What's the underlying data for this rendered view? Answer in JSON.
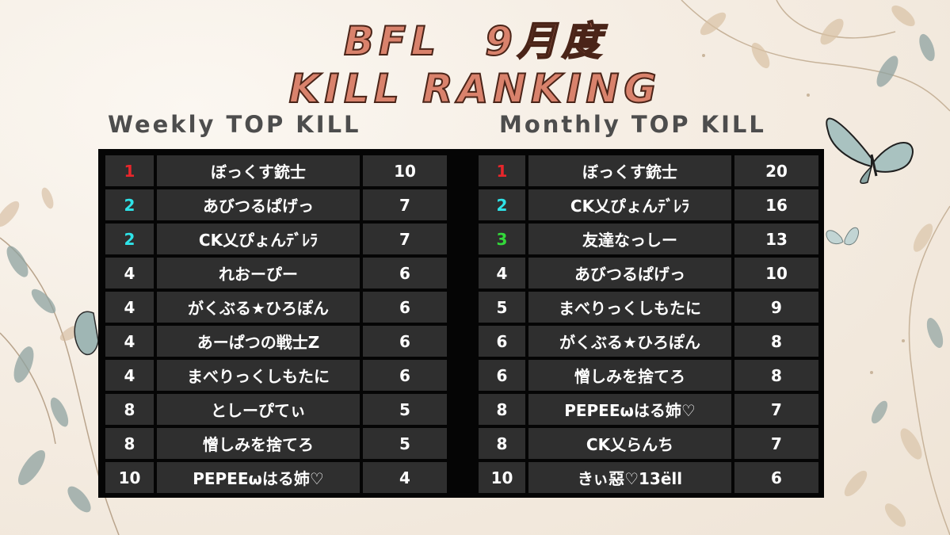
{
  "title": {
    "line1": "BFL　9月度",
    "line2": "KILL RANKING"
  },
  "weekly": {
    "heading": "Weekly TOP KILL",
    "rows": [
      {
        "rank": "1",
        "name": "ぼっくす銃士",
        "kills": "10",
        "rank_color": "#e8262b"
      },
      {
        "rank": "2",
        "name": "あびつるぱげっ",
        "kills": "7",
        "rank_color": "#2ee3e8"
      },
      {
        "rank": "2",
        "name": "CK乂ぴょんﾃﾞﾚﾗ",
        "kills": "7",
        "rank_color": "#2ee3e8"
      },
      {
        "rank": "4",
        "name": "れおーぴー",
        "kills": "6",
        "rank_color": "#ffffff"
      },
      {
        "rank": "4",
        "name": "がくぶる★ひろぽん",
        "kills": "6",
        "rank_color": "#ffffff"
      },
      {
        "rank": "4",
        "name": "あーぱつの戦士Z",
        "kills": "6",
        "rank_color": "#ffffff"
      },
      {
        "rank": "4",
        "name": "まべりっくしもたに",
        "kills": "6",
        "rank_color": "#ffffff"
      },
      {
        "rank": "8",
        "name": "としーぴてぃ",
        "kills": "5",
        "rank_color": "#ffffff"
      },
      {
        "rank": "8",
        "name": "憎しみを捨てろ",
        "kills": "5",
        "rank_color": "#ffffff"
      },
      {
        "rank": "10",
        "name": "PEPEEωはる姉♡",
        "kills": "4",
        "rank_color": "#ffffff"
      }
    ]
  },
  "monthly": {
    "heading": "Monthly TOP KILL",
    "rows": [
      {
        "rank": "1",
        "name": "ぼっくす銃士",
        "kills": "20",
        "rank_color": "#e8262b"
      },
      {
        "rank": "2",
        "name": "CK乂ぴょんﾃﾞﾚﾗ",
        "kills": "16",
        "rank_color": "#2ee3e8"
      },
      {
        "rank": "3",
        "name": "友達なっしー",
        "kills": "13",
        "rank_color": "#33d93a"
      },
      {
        "rank": "4",
        "name": "あびつるぱげっ",
        "kills": "10",
        "rank_color": "#ffffff"
      },
      {
        "rank": "5",
        "name": "まべりっくしもたに",
        "kills": "9",
        "rank_color": "#ffffff"
      },
      {
        "rank": "6",
        "name": "がくぶる★ひろぽん",
        "kills": "8",
        "rank_color": "#ffffff"
      },
      {
        "rank": "6",
        "name": "憎しみを捨てろ",
        "kills": "8",
        "rank_color": "#ffffff"
      },
      {
        "rank": "8",
        "name": "PEPEEωはる姉♡",
        "kills": "7",
        "rank_color": "#ffffff"
      },
      {
        "rank": "8",
        "name": "CK乂らんち",
        "kills": "7",
        "rank_color": "#ffffff"
      },
      {
        "rank": "10",
        "name": "きぃ惡♡13ëll",
        "kills": "6",
        "rank_color": "#ffffff"
      }
    ]
  },
  "colors": {
    "title_fill": "#d9826c",
    "title_outline": "#4a2418",
    "board": "#050505",
    "cell": "#2f2f2f"
  },
  "decorations": [
    "leaf-branch-icon",
    "butterfly-icon"
  ]
}
